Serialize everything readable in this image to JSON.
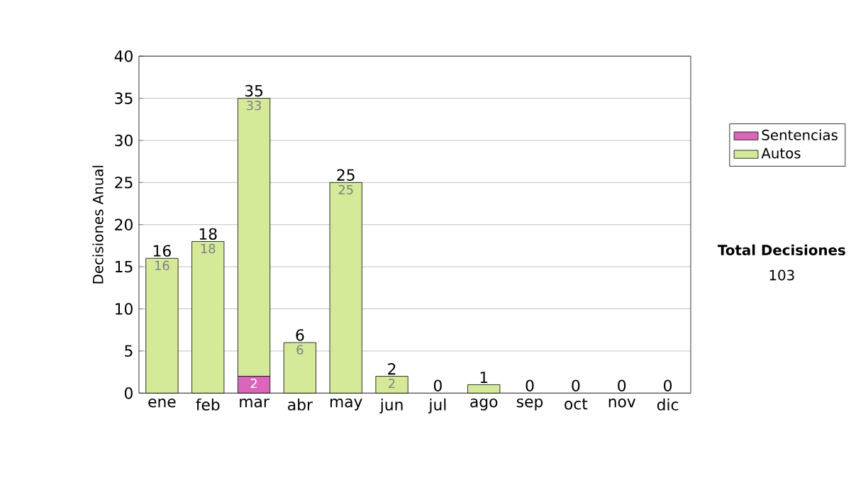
{
  "chart_data": {
    "type": "bar",
    "stacked": true,
    "ylabel": "Decisiones Anual",
    "categories": [
      "ene",
      "feb",
      "mar",
      "abr",
      "may",
      "jun",
      "jul",
      "ago",
      "sep",
      "oct",
      "nov",
      "dic"
    ],
    "series": [
      {
        "name": "Sentencias",
        "color": "#d966b8",
        "values": [
          0,
          0,
          2,
          0,
          0,
          0,
          0,
          0,
          0,
          0,
          0,
          0
        ],
        "value_labels": [
          null,
          null,
          "2",
          null,
          null,
          null,
          null,
          null,
          null,
          null,
          null,
          null
        ]
      },
      {
        "name": "Autos",
        "color": "#d4ea99",
        "values": [
          16,
          18,
          33,
          6,
          25,
          2,
          0,
          1,
          0,
          0,
          0,
          0
        ],
        "value_labels": [
          "16",
          "18",
          "33",
          "6",
          "25",
          "2",
          null,
          null,
          null,
          null,
          null,
          null
        ]
      }
    ],
    "totals": [
      "16",
      "18",
      "35",
      "6",
      "25",
      "2",
      "0",
      "1",
      "0",
      "0",
      "0",
      "0"
    ],
    "ylim": [
      0,
      40
    ],
    "yticks": [
      0,
      5,
      10,
      15,
      20,
      25,
      30,
      35,
      40
    ],
    "grid": "y",
    "legend": "right",
    "annotations": [
      "Total Decisiones",
      "103"
    ]
  }
}
